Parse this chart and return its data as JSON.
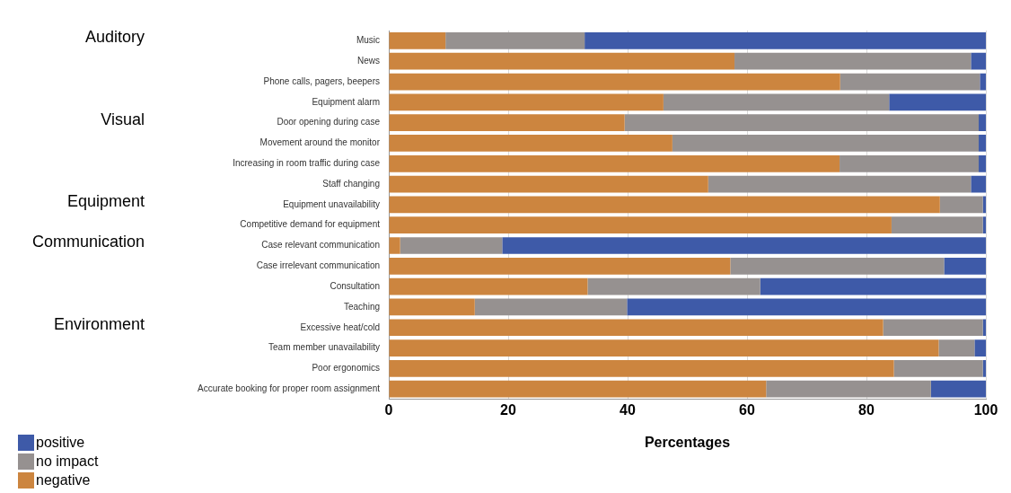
{
  "chart_data": {
    "type": "bar",
    "orientation": "horizontal",
    "stacked": true,
    "xlabel": "Percentages",
    "categories": [
      "Music",
      "News",
      "Phone calls, pagers, beepers",
      "Equipment alarm",
      "Door opening during case",
      "Movement around the monitor",
      "Increasing in room traffic during case",
      "Staff changing",
      "Equipment unavailability",
      "Competitive demand for equipment",
      "Case relevant communication",
      "Case irrelevant communication",
      "Consultation",
      "Teaching",
      "Excessive heat/cold",
      "Team member unavailability",
      "Poor ergonomics",
      "Accurate booking for proper room assignment"
    ],
    "series": [
      {
        "name": "negative",
        "color": "#cc853f",
        "values": [
          9.5,
          57.9,
          75.6,
          46,
          39.5,
          47.5,
          75.5,
          53.5,
          92.3,
          84.2,
          1.9,
          57.2,
          33.3,
          14.4,
          82.8,
          92.1,
          84.6,
          63.2
        ]
      },
      {
        "name": "no impact",
        "color": "#969190",
        "values": [
          23.3,
          39.6,
          23.4,
          37.8,
          59.3,
          51.3,
          23.3,
          44,
          7.2,
          15.3,
          17.1,
          35.8,
          28.9,
          25.5,
          16.7,
          6,
          14.9,
          27.6
        ]
      },
      {
        "name": "positive",
        "color": "#3e5aa8",
        "values": [
          67.2,
          2.5,
          1,
          16.2,
          1.2,
          1.2,
          1.2,
          2.5,
          0.5,
          0.5,
          81,
          7,
          37.8,
          60.1,
          0.5,
          1.9,
          0.5,
          9.2
        ]
      }
    ],
    "xlim": [
      0,
      100
    ],
    "xticks": [
      0,
      20,
      40,
      60,
      80,
      100
    ],
    "grid": "x",
    "legend": "bottom left",
    "annotations": [
      "Auditory",
      "Visual",
      "Equipment",
      "Communication",
      "Environment"
    ]
  }
}
